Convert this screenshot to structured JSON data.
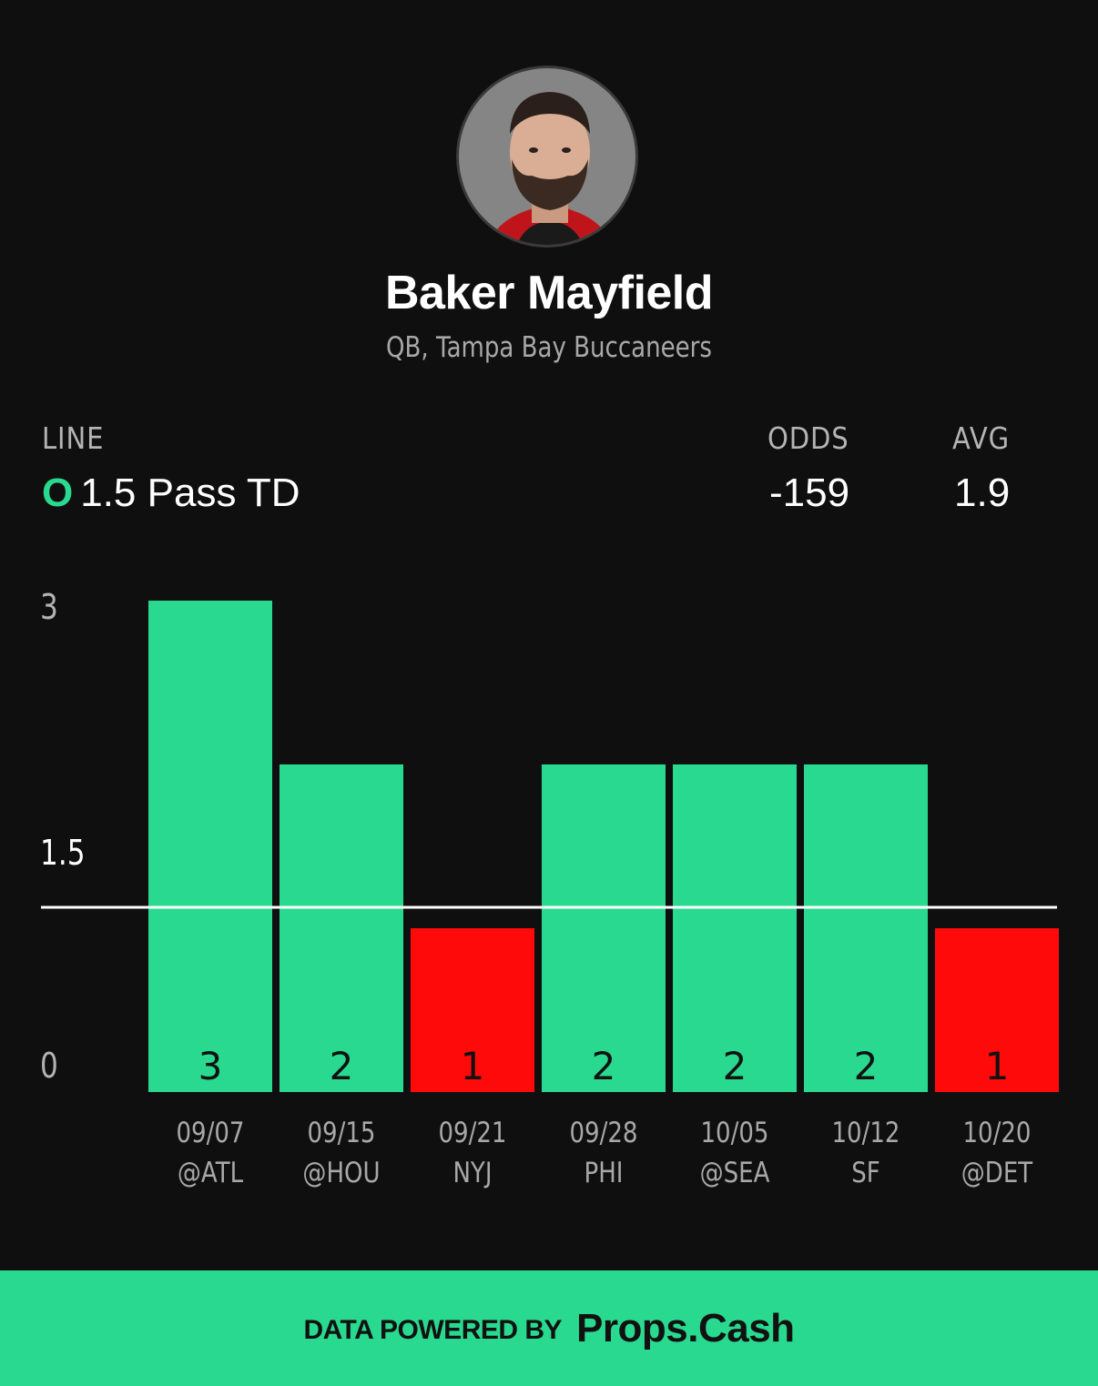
{
  "player": {
    "name": "Baker Mayfield",
    "subtitle": "QB, Tampa Bay Buccaneers"
  },
  "stats": {
    "line_label": "LINE",
    "line_side": "O",
    "line_value": "1.5 Pass TD",
    "odds_label": "ODDS",
    "odds_value": "-159",
    "avg_label": "AVG",
    "avg_value": "1.9"
  },
  "colors": {
    "background": "#0f0f0f",
    "over": "#29d98f",
    "under": "#ff0a0a",
    "line": "#ffffff"
  },
  "chart_data": {
    "type": "bar",
    "categories": [
      "09/07",
      "09/15",
      "09/21",
      "09/28",
      "10/05",
      "10/12",
      "10/20"
    ],
    "opponents": [
      "@ATL",
      "@HOU",
      "NYJ",
      "PHI",
      "@SEA",
      "SF",
      "@DET"
    ],
    "values": [
      3,
      2,
      1,
      2,
      2,
      2,
      1
    ],
    "threshold": 1.5,
    "y_ticks": [
      "3",
      "1.5",
      "0"
    ],
    "title": "",
    "xlabel": "",
    "ylabel": "",
    "legend": "none",
    "grid": false
  },
  "footer": {
    "prefix": "DATA POWERED BY",
    "brand": "Props.Cash"
  }
}
